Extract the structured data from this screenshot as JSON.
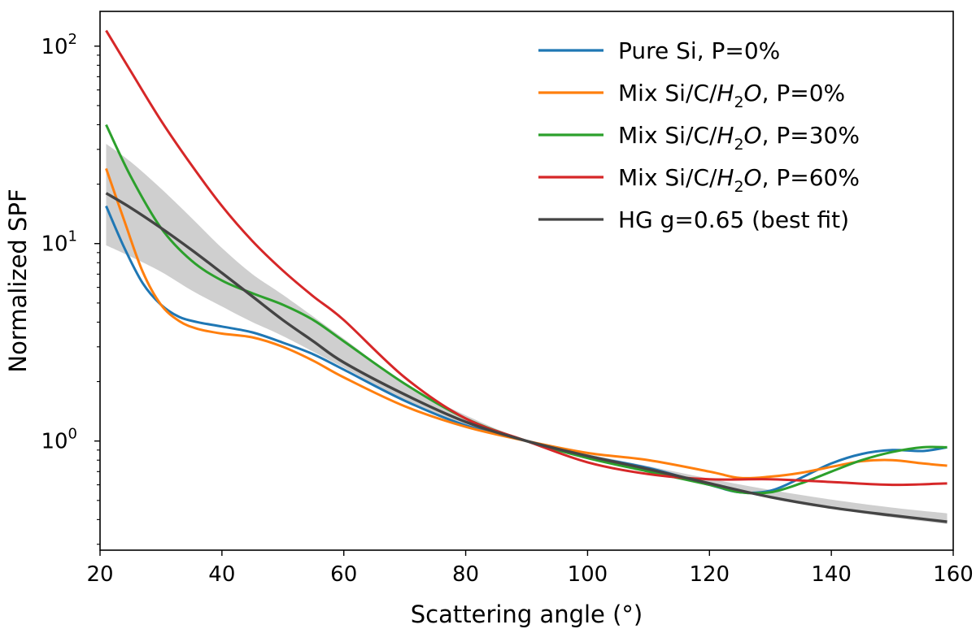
{
  "chart_data": {
    "type": "line",
    "xlabel": "Scattering angle (°)",
    "ylabel": "Normalized SPF",
    "xlim": [
      20,
      160
    ],
    "ylim": [
      0.28,
      150
    ],
    "yscale": "log",
    "grid": false,
    "legend_position": "top-right",
    "x_ticks": [
      "20",
      "40",
      "60",
      "80",
      "100",
      "120",
      "140",
      "160"
    ],
    "y_ticks": [
      {
        "base": "10",
        "exp": "0"
      },
      {
        "base": "10",
        "exp": "1"
      },
      {
        "base": "10",
        "exp": "2"
      }
    ],
    "band": {
      "x": [
        21,
        25,
        30,
        35,
        40,
        45,
        50,
        60,
        70,
        80,
        90,
        100,
        110,
        120,
        130,
        140,
        150,
        159
      ],
      "lo": [
        9.8,
        8.6,
        7.2,
        5.8,
        4.8,
        4.0,
        3.4,
        2.35,
        1.62,
        1.2,
        0.99,
        0.84,
        0.72,
        0.61,
        0.52,
        0.455,
        0.41,
        0.38
      ],
      "hi": [
        32,
        26,
        19,
        13.5,
        9.5,
        7.0,
        5.5,
        3.3,
        1.95,
        1.35,
        1.01,
        0.86,
        0.745,
        0.645,
        0.565,
        0.505,
        0.46,
        0.43
      ]
    },
    "series": [
      {
        "name": "Pure Si, P=0%",
        "color": "#1f77b4",
        "x": [
          21,
          24,
          27,
          30,
          33,
          36,
          40,
          45,
          50,
          55,
          60,
          70,
          80,
          90,
          100,
          110,
          120,
          125,
          130,
          135,
          140,
          145,
          150,
          155,
          159
        ],
        "y": [
          15.5,
          9.5,
          6.3,
          4.9,
          4.25,
          4.0,
          3.8,
          3.55,
          3.15,
          2.75,
          2.3,
          1.6,
          1.2,
          1.0,
          0.84,
          0.73,
          0.6,
          0.55,
          0.56,
          0.65,
          0.77,
          0.86,
          0.9,
          0.89,
          0.93
        ]
      },
      {
        "name": "Mix Si/C/$H_2O$, P=0%",
        "color": "#ff7f0e",
        "x": [
          21,
          24,
          27,
          30,
          33,
          36,
          40,
          45,
          50,
          55,
          60,
          70,
          80,
          90,
          100,
          110,
          120,
          125,
          130,
          135,
          140,
          145,
          150,
          155,
          159
        ],
        "y": [
          24,
          13,
          7.2,
          4.9,
          4.05,
          3.7,
          3.5,
          3.35,
          3.0,
          2.55,
          2.1,
          1.5,
          1.18,
          1.0,
          0.87,
          0.8,
          0.7,
          0.65,
          0.66,
          0.69,
          0.74,
          0.79,
          0.8,
          0.77,
          0.75
        ]
      },
      {
        "name": "Mix Si/C/$H_2O$, P=30%",
        "color": "#2ca02c",
        "x": [
          21,
          25,
          30,
          35,
          40,
          45,
          50,
          55,
          60,
          70,
          80,
          90,
          100,
          110,
          120,
          125,
          130,
          135,
          140,
          145,
          150,
          155,
          159
        ],
        "y": [
          40,
          22,
          12,
          8.2,
          6.5,
          5.6,
          4.9,
          4.1,
          3.2,
          1.95,
          1.3,
          1.0,
          0.82,
          0.7,
          0.6,
          0.55,
          0.55,
          0.61,
          0.7,
          0.8,
          0.88,
          0.93,
          0.93
        ]
      },
      {
        "name": "Mix Si/C/$H_2O$, P=60%",
        "color": "#d62728",
        "x": [
          21,
          25,
          30,
          35,
          40,
          45,
          50,
          55,
          60,
          70,
          80,
          90,
          100,
          110,
          120,
          130,
          140,
          150,
          159
        ],
        "y": [
          120,
          75,
          42,
          25,
          15.5,
          10.3,
          7.3,
          5.4,
          4.1,
          2.1,
          1.3,
          1.0,
          0.78,
          0.68,
          0.64,
          0.64,
          0.62,
          0.6,
          0.61
        ]
      },
      {
        "name": "HG g=0.65 (best fit)",
        "color": "#444444",
        "x": [
          21,
          25,
          30,
          35,
          40,
          45,
          50,
          55,
          60,
          70,
          80,
          90,
          100,
          110,
          120,
          130,
          140,
          150,
          159
        ],
        "y": [
          18,
          15.2,
          12.0,
          9.3,
          7.1,
          5.4,
          4.1,
          3.2,
          2.5,
          1.72,
          1.25,
          1.0,
          0.84,
          0.72,
          0.61,
          0.52,
          0.46,
          0.42,
          0.39
        ]
      }
    ]
  }
}
